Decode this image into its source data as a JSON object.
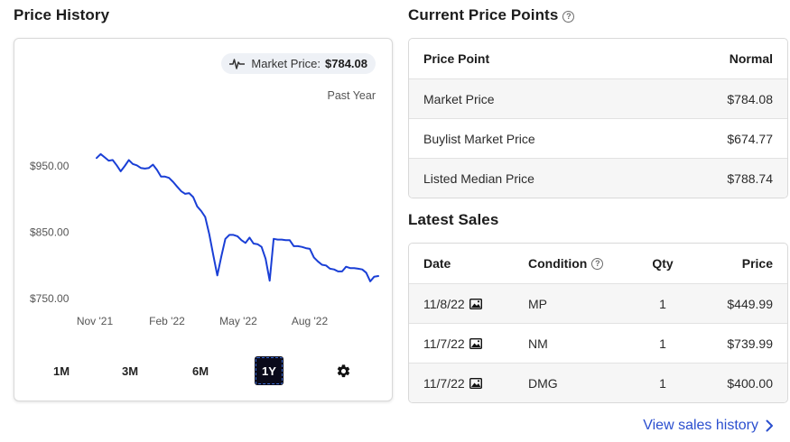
{
  "price_history": {
    "title": "Price History",
    "market_label": "Market Price:",
    "market_value": "$784.08",
    "period": "Past Year",
    "y_ticks": [
      "$950.00",
      "$850.00",
      "$750.00"
    ],
    "x_ticks": [
      "Nov '21",
      "Feb '22",
      "May '22",
      "Aug '22"
    ],
    "ranges": [
      "1M",
      "3M",
      "6M",
      "1Y"
    ],
    "active_range": "1Y",
    "line_color": "#1a3fd6",
    "settings_icon": "gear-icon"
  },
  "chart_data": {
    "type": "line",
    "title": "",
    "xlabel": "",
    "ylabel": "",
    "ylim": [
      740,
      980
    ],
    "x_ticks": [
      "Nov '21",
      "Feb '22",
      "May '22",
      "Aug '22"
    ],
    "series": [
      {
        "values": [
          962,
          968,
          963,
          958,
          959,
          951,
          942,
          950,
          959,
          953,
          951,
          947,
          946,
          947,
          952,
          944,
          934,
          934,
          932,
          926,
          919,
          912,
          908,
          909,
          903,
          889,
          882,
          873,
          847,
          815,
          785,
          814,
          840,
          846,
          846,
          844,
          838,
          834,
          842,
          833,
          832,
          828,
          810,
          777,
          840,
          839,
          839,
          838,
          838,
          829,
          829,
          828,
          826,
          825,
          812,
          806,
          801,
          800,
          795,
          794,
          791,
          791,
          798,
          796,
          796,
          795,
          794,
          789,
          776,
          783,
          784
        ]
      }
    ]
  },
  "current_price_points": {
    "title": "Current Price Points",
    "header": {
      "name": "Price Point",
      "value": "Normal"
    },
    "rows": [
      {
        "name": "Market Price",
        "value": "$784.08"
      },
      {
        "name": "Buylist Market Price",
        "value": "$674.77"
      },
      {
        "name": "Listed Median Price",
        "value": "$788.74"
      }
    ]
  },
  "latest_sales": {
    "title": "Latest Sales",
    "header": {
      "date": "Date",
      "condition": "Condition",
      "qty": "Qty",
      "price": "Price"
    },
    "rows": [
      {
        "date": "11/8/22",
        "condition": "MP",
        "qty": "1",
        "price": "$449.99"
      },
      {
        "date": "11/7/22",
        "condition": "NM",
        "qty": "1",
        "price": "$739.99"
      },
      {
        "date": "11/7/22",
        "condition": "DMG",
        "qty": "1",
        "price": "$400.00"
      }
    ],
    "view_link": "View sales history"
  }
}
